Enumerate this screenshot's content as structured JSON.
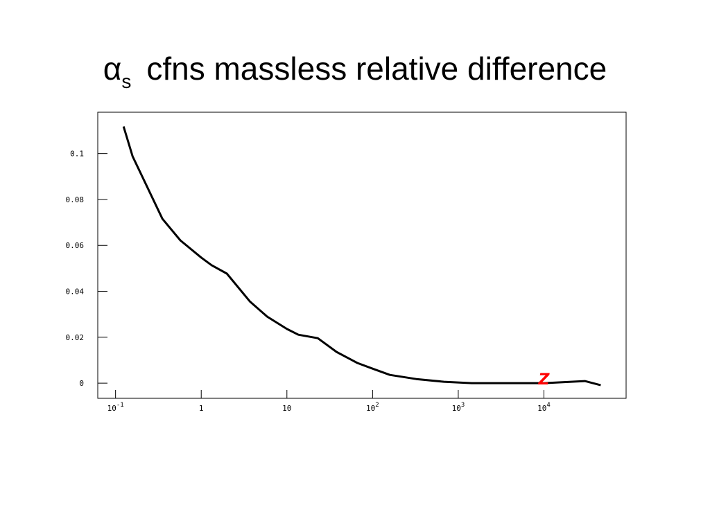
{
  "chart_data": {
    "type": "line",
    "title_symbol": "α",
    "title_subscript": "s",
    "title": "cfns massless relative difference",
    "x": [
      0.124,
      0.158,
      0.352,
      0.571,
      1,
      1.32,
      1.99,
      3.69,
      5.87,
      10,
      13.6,
      22.9,
      37.9,
      66.4,
      100,
      159,
      324,
      680,
      1440,
      10000,
      30000,
      46000
    ],
    "series": [
      {
        "color": "#000000",
        "values": [
          0.1118,
          0.0988,
          0.0716,
          0.0622,
          0.0547,
          0.0514,
          0.0477,
          0.0356,
          0.029,
          0.0236,
          0.0211,
          0.0196,
          0.0136,
          0.0088,
          0.0063,
          0.0036,
          0.0018,
          0.0006,
          0,
          0,
          0.0009,
          -0.0009
        ]
      }
    ],
    "xscale": "log",
    "xlim": [
      0.062,
      91000
    ],
    "ylim": [
      -0.0066,
      0.118
    ],
    "xticks": [
      {
        "value": 0.1,
        "label": "10",
        "exponent": "-1"
      },
      1,
      10,
      {
        "value": 100,
        "label": "10",
        "exponent": "2"
      },
      {
        "value": 1000,
        "label": "10",
        "exponent": "3"
      },
      {
        "value": 10000,
        "label": "10",
        "exponent": "4"
      }
    ],
    "yticks": [
      0,
      0.02,
      0.04,
      0.06,
      0.08,
      0.1
    ],
    "annotations": [
      {
        "text": "Z",
        "x": 10000,
        "y": 0.0018,
        "color": "#ff0000"
      }
    ]
  }
}
